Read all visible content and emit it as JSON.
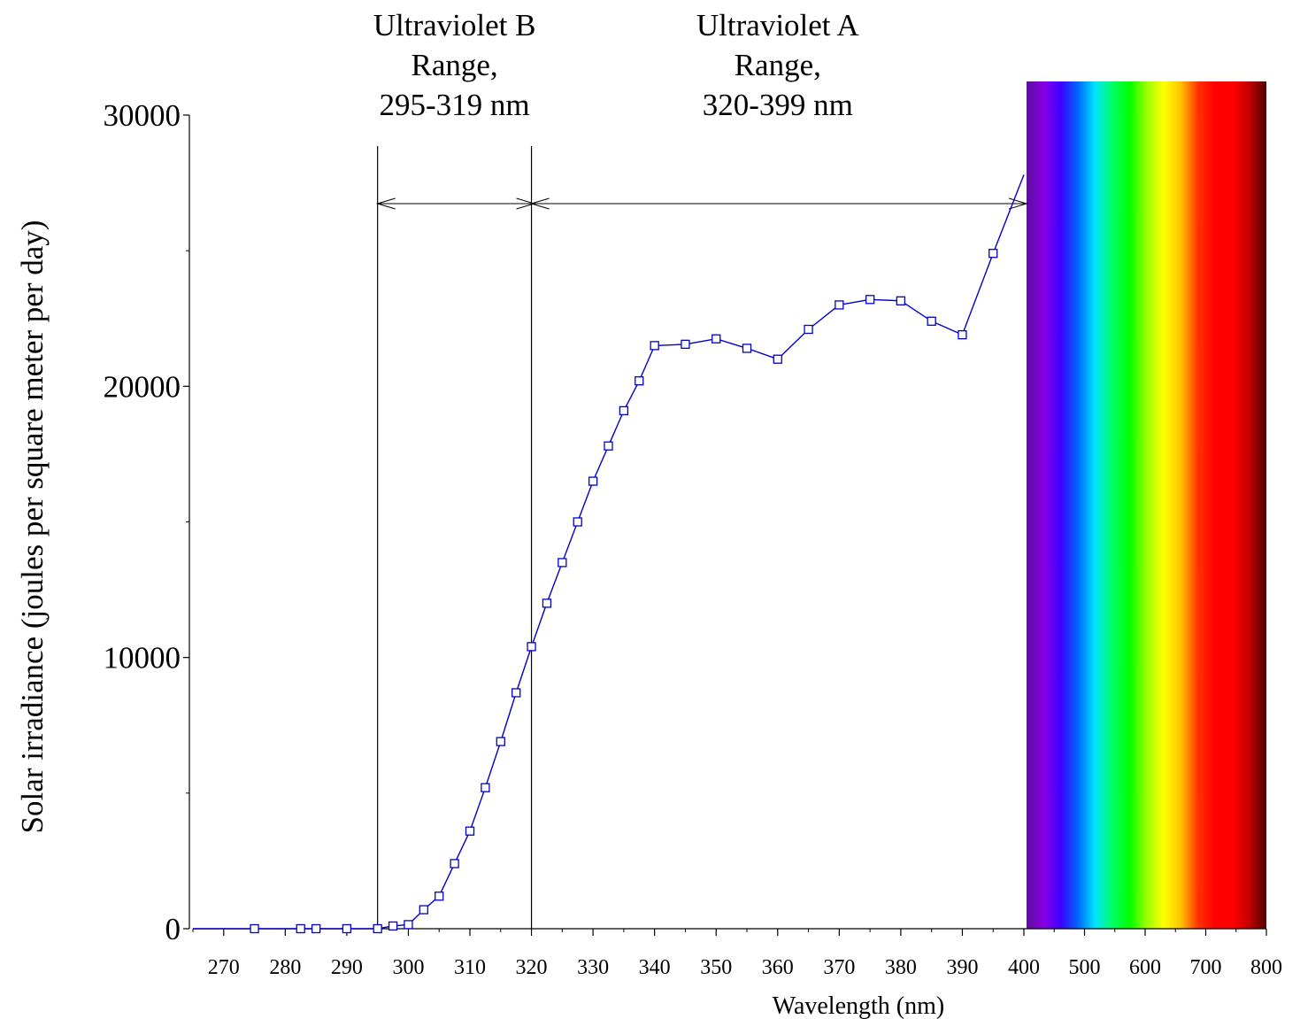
{
  "chart_data": {
    "type": "line",
    "title": "",
    "xlabel": "Wavelength (nm)",
    "ylabel": "Solar irradiance (joules per square meter per day)",
    "ylim": [
      0,
      30000
    ],
    "y_ticks": [
      0,
      10000,
      20000,
      30000
    ],
    "y_tick_labels": [
      "0",
      "10000",
      "20000",
      "30000"
    ],
    "uv_axis_xlim": [
      265,
      400
    ],
    "x_ticks_uv": [
      270,
      280,
      290,
      300,
      310,
      320,
      330,
      340,
      350,
      360,
      370,
      380,
      390,
      400
    ],
    "x_tick_labels_uv": [
      "270",
      "280",
      "290",
      "300",
      "310",
      "320",
      "330",
      "340",
      "350",
      "360",
      "370",
      "380",
      "390",
      "400"
    ],
    "visible_axis_xlim": [
      400,
      800
    ],
    "x_ticks_visible": [
      500,
      600,
      700,
      800
    ],
    "x_tick_labels_visible": [
      "500",
      "600",
      "700",
      "800"
    ],
    "grid": false,
    "legend": "none",
    "series": [
      {
        "color": "#0000cc",
        "marker": "square",
        "x": [
          265,
          275,
          282.5,
          285,
          290,
          295,
          297.5,
          300,
          302.5,
          305,
          307.5,
          310,
          312.5,
          315,
          317.5,
          320,
          322.5,
          325,
          327.5,
          330,
          332.5,
          335,
          337.5,
          340,
          345,
          350,
          355,
          360,
          365,
          370,
          375,
          380,
          385,
          390,
          395,
          400
        ],
        "y": [
          0,
          0,
          0,
          0,
          0,
          0,
          100,
          150,
          700,
          1200,
          2400,
          3600,
          5200,
          6900,
          8700,
          10400,
          12000,
          13500,
          15000,
          16500,
          17800,
          19100,
          20200,
          21500,
          21550,
          21750,
          21400,
          21000,
          22100,
          23000,
          23200,
          23150,
          22400,
          21900,
          24900,
          27800
        ],
        "marker_mask": [
          false,
          true,
          true,
          true,
          true,
          true,
          true,
          true,
          true,
          true,
          true,
          true,
          true,
          true,
          true,
          true,
          true,
          true,
          true,
          true,
          true,
          true,
          true,
          true,
          true,
          true,
          true,
          true,
          true,
          true,
          true,
          true,
          true,
          true,
          true,
          false
        ]
      }
    ],
    "vertical_lines": [
      295,
      320
    ],
    "ranges": [
      {
        "label_lines": [
          "Ultraviolet B",
          "Range,",
          "295-319 nm"
        ],
        "from": 295,
        "to": 320
      },
      {
        "label_lines": [
          "Ultraviolet A",
          "Range,",
          "320-399 nm"
        ],
        "from": 320,
        "to": 400
      }
    ],
    "spectrum_band_colors": [
      "#5a0f99",
      "#8a00e6",
      "#3d00ff",
      "#0066ff",
      "#00e5ff",
      "#00ff66",
      "#00ff00",
      "#99ff00",
      "#ffff00",
      "#ffc400",
      "#ff3300",
      "#ff0000",
      "#ff0000",
      "#c40000",
      "#4d0000"
    ]
  }
}
